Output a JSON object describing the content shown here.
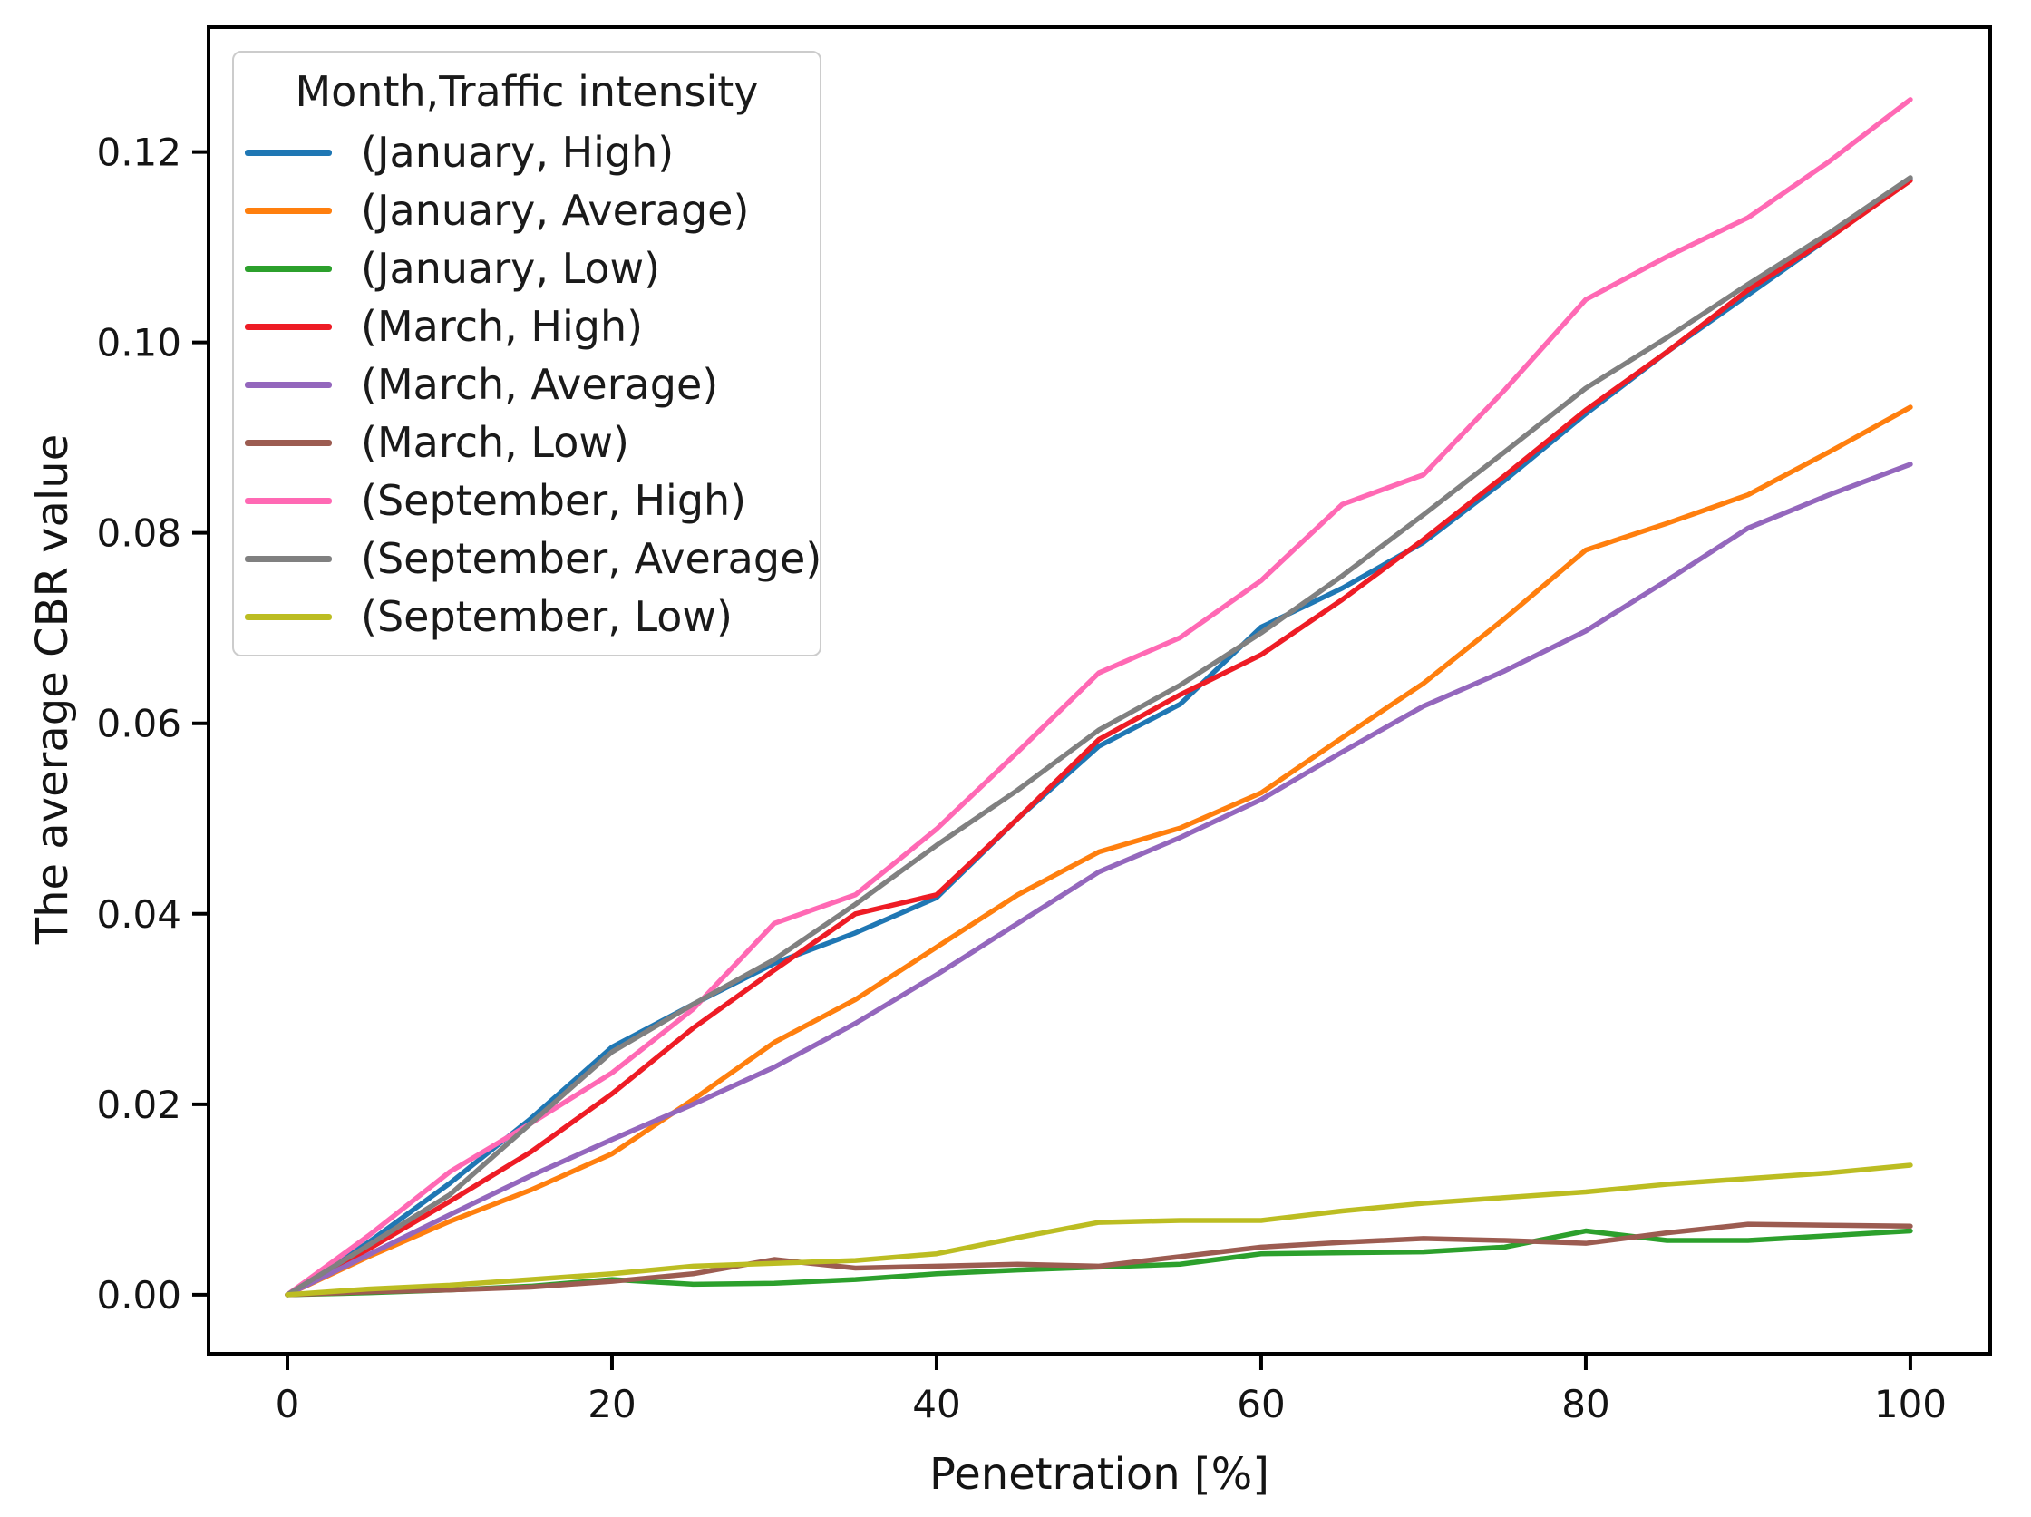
{
  "figure": {
    "background": "#ffffff",
    "axes_color": "#000000",
    "tick_label_color": "#141414"
  },
  "chart_data": {
    "type": "line",
    "title": "",
    "xlabel": "Penetration [%]",
    "ylabel": "The average CBR value",
    "legend_title": "Month,Traffic intensity",
    "legend_position": "upper left",
    "grid": false,
    "xlim": [
      -4.86,
      104.92
    ],
    "ylim": [
      -0.0062,
      0.1331
    ],
    "x_ticks": [
      0,
      20,
      40,
      60,
      80,
      100
    ],
    "y_ticks": [
      0.0,
      0.02,
      0.04,
      0.06,
      0.08,
      0.1,
      0.12
    ],
    "x": [
      0,
      5,
      10,
      15,
      20,
      25,
      30,
      35,
      40,
      45,
      50,
      55,
      60,
      65,
      70,
      75,
      80,
      85,
      90,
      95,
      100
    ],
    "series": [
      {
        "name": "(January, High)",
        "color": "#1f77b4",
        "values": [
          0,
          0.0055,
          0.0117,
          0.0185,
          0.026,
          0.0305,
          0.0348,
          0.038,
          0.0417,
          0.05,
          0.0576,
          0.062,
          0.0701,
          0.0742,
          0.079,
          0.0855,
          0.0925,
          0.099,
          0.105,
          0.111,
          0.1172
        ]
      },
      {
        "name": "(January, Average)",
        "color": "#ff7f0e",
        "values": [
          0,
          0.004,
          0.0077,
          0.011,
          0.0148,
          0.0205,
          0.0265,
          0.031,
          0.0365,
          0.042,
          0.0465,
          0.049,
          0.0527,
          0.0585,
          0.0642,
          0.071,
          0.0782,
          0.081,
          0.084,
          0.0885,
          0.0932
        ]
      },
      {
        "name": "(January, Low)",
        "color": "#2ca02c",
        "values": [
          0,
          0.0002,
          0.0005,
          0.0009,
          0.0016,
          0.0011,
          0.0012,
          0.0016,
          0.0022,
          0.0026,
          0.0029,
          0.0032,
          0.0043,
          0.0044,
          0.0045,
          0.005,
          0.0067,
          0.0057,
          0.0057,
          0.0062,
          0.0067
        ]
      },
      {
        "name": "(March, High)",
        "color": "#ee1c25",
        "values": [
          0,
          0.0048,
          0.0098,
          0.015,
          0.0211,
          0.028,
          0.0341,
          0.04,
          0.042,
          0.05,
          0.0583,
          0.063,
          0.0672,
          0.073,
          0.0793,
          0.086,
          0.0929,
          0.099,
          0.1055,
          0.111,
          0.117
        ]
      },
      {
        "name": "(March, Average)",
        "color": "#9467bd",
        "values": [
          0,
          0.0042,
          0.0084,
          0.0125,
          0.0163,
          0.02,
          0.0239,
          0.0285,
          0.0336,
          0.039,
          0.0444,
          0.048,
          0.052,
          0.057,
          0.0618,
          0.0655,
          0.0697,
          0.075,
          0.0805,
          0.084,
          0.0872
        ]
      },
      {
        "name": "(March, Low)",
        "color": "#9c5c51",
        "values": [
          0,
          0.0003,
          0.0005,
          0.0008,
          0.0014,
          0.0022,
          0.0037,
          0.0028,
          0.003,
          0.0032,
          0.003,
          0.004,
          0.005,
          0.0055,
          0.0059,
          0.0057,
          0.0054,
          0.0065,
          0.0074,
          0.0073,
          0.0072
        ]
      },
      {
        "name": "(September, High)",
        "color": "#ff69b4",
        "values": [
          0,
          0.0062,
          0.0129,
          0.018,
          0.0233,
          0.03,
          0.039,
          0.042,
          0.0489,
          0.057,
          0.0653,
          0.069,
          0.075,
          0.083,
          0.0861,
          0.095,
          0.1045,
          0.109,
          0.1131,
          0.119,
          0.1255
        ]
      },
      {
        "name": "(September, Average)",
        "color": "#808080",
        "values": [
          0,
          0.0052,
          0.0105,
          0.018,
          0.0255,
          0.0305,
          0.0352,
          0.041,
          0.0472,
          0.053,
          0.0593,
          0.064,
          0.0695,
          0.0755,
          0.0819,
          0.0885,
          0.0952,
          0.1005,
          0.1061,
          0.1115,
          0.1173
        ]
      },
      {
        "name": "(September, Low)",
        "color": "#bcbd22",
        "values": [
          0,
          0.0006,
          0.001,
          0.0016,
          0.0022,
          0.003,
          0.0033,
          0.0036,
          0.0043,
          0.006,
          0.0076,
          0.0078,
          0.0078,
          0.0088,
          0.0096,
          0.0102,
          0.0108,
          0.0116,
          0.0122,
          0.0128,
          0.0136
        ]
      }
    ]
  }
}
